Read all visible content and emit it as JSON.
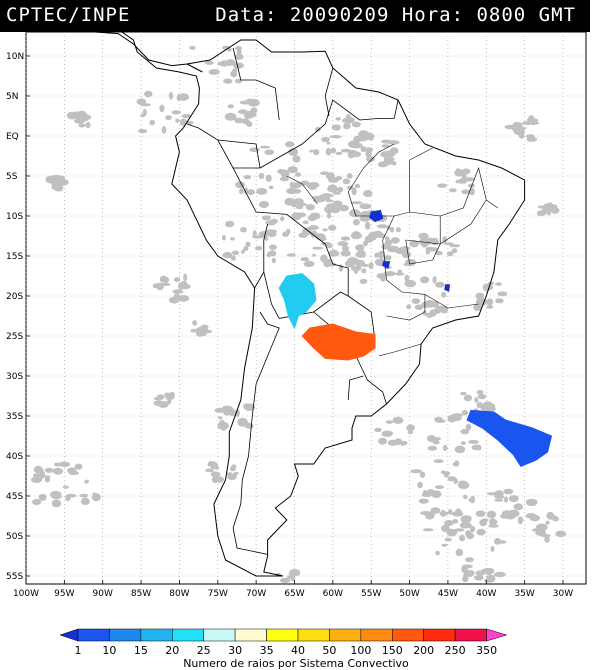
{
  "header": {
    "title": "CPTEC/INPE",
    "datetime": "Data: 20090209 Hora: 0800 GMT"
  },
  "map": {
    "lat_labels": [
      "10N",
      "5N",
      "EQ",
      "5S",
      "10S",
      "15S",
      "20S",
      "25S",
      "30S",
      "35S",
      "40S",
      "45S",
      "50S",
      "55S"
    ],
    "lon_labels": [
      "100W",
      "95W",
      "90W",
      "85W",
      "80W",
      "75W",
      "70W",
      "65W",
      "60W",
      "55W",
      "50W",
      "45W",
      "40W",
      "35W",
      "30W"
    ],
    "lon_range": [
      -100,
      -27
    ],
    "lat_range": [
      -56,
      13
    ],
    "grid": "dotted"
  },
  "systems": [
    {
      "name": "cyan-system",
      "color": "#22ccf0",
      "lon": -64,
      "lat": -20
    },
    {
      "name": "orange-system",
      "color": "#ff5a10",
      "lon": -59,
      "lat": -26
    },
    {
      "name": "blue-system-atlantic",
      "color": "#1a55f0",
      "lon": -36,
      "lat": -38
    },
    {
      "name": "blue-system-north",
      "color": "#1530d0",
      "lon": -54,
      "lat": -10
    },
    {
      "name": "blue-system-small-1",
      "color": "#1530d0",
      "lon": -53,
      "lat": -16
    },
    {
      "name": "blue-system-small-2",
      "color": "#1530d0",
      "lon": -45,
      "lat": -19
    }
  ],
  "colorbar": {
    "ticks": [
      "1",
      "10",
      "15",
      "20",
      "25",
      "30",
      "35",
      "40",
      "50",
      "100",
      "150",
      "200",
      "250",
      "350"
    ],
    "colors": [
      "#1430d8",
      "#1a55f0",
      "#1e88ee",
      "#22b4f0",
      "#22e0f8",
      "#c8f8f8",
      "#fffad0",
      "#ffff10",
      "#ffdd10",
      "#ffb010",
      "#ff8a10",
      "#ff5a10",
      "#ff2a10",
      "#f0104a",
      "#ff40d0"
    ],
    "label": "Numero de raios por Sistema Convectivo"
  }
}
